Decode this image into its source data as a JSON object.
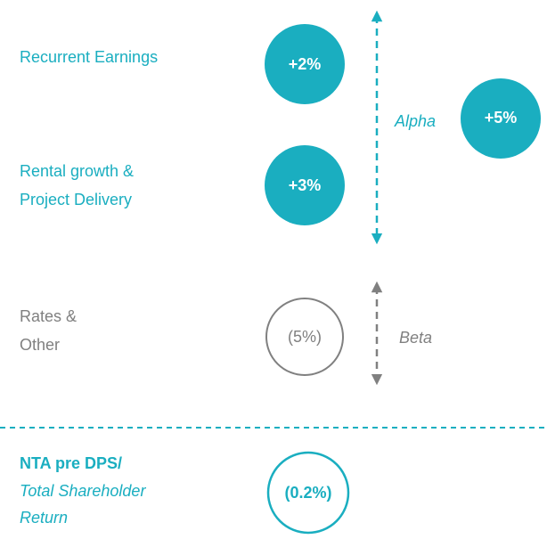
{
  "rows": [
    {
      "label": [
        "Recurrent Earnings"
      ],
      "value": "+2%"
    },
    {
      "label": [
        "Rental growth &",
        "Project Delivery"
      ],
      "value": "+3%"
    },
    {
      "label": [
        "Rates &",
        "Other"
      ],
      "value": "(5%)"
    }
  ],
  "alpha": {
    "label": "Alpha",
    "value": "+5%"
  },
  "beta": {
    "label": "Beta"
  },
  "total": {
    "label": [
      "NTA pre DPS/",
      "Total Shareholder",
      "Return"
    ],
    "value": "(0.2%)"
  }
}
